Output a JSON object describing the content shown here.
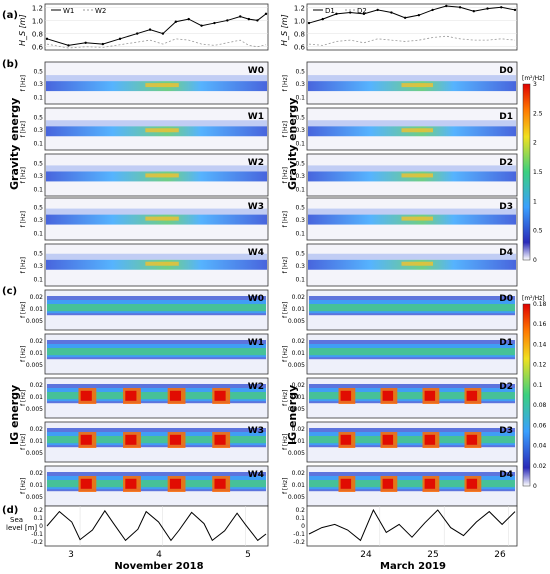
{
  "panel_letters": {
    "a": "(a)",
    "b": "(b)",
    "c": "(c)",
    "d": "(d)"
  },
  "colorbars": {
    "gravity": {
      "unit": "[m²/Hz]",
      "ticks": [
        "3",
        "2.5",
        "2",
        "1.5",
        "1",
        "0.5",
        "0"
      ]
    },
    "ig": {
      "unit": "[m²/Hz]",
      "ticks": [
        "0.18",
        "0.16",
        "0.14",
        "0.12",
        "0.1",
        "0.08",
        "0.06",
        "0.04",
        "0.02",
        "0"
      ]
    }
  },
  "row_labels": {
    "gravity_left": "Gravity energy",
    "gravity_right": "Gravity energy",
    "ig_left": "IG energy",
    "ig_right": "IG energy"
  },
  "spectro_labels": {
    "gravity_left": [
      "W0",
      "W1",
      "W2",
      "W3",
      "W4"
    ],
    "gravity_right": [
      "D0",
      "D1",
      "D2",
      "D3",
      "D4"
    ],
    "ig_left": [
      "W0",
      "W1",
      "W2",
      "W3",
      "W4"
    ],
    "ig_right": [
      "D0",
      "D1",
      "D2",
      "D3",
      "D4"
    ]
  },
  "axis_text": {
    "f_label": "f [Hz]",
    "hs_label": "H_S [m]",
    "sea_label_1": "Sea",
    "sea_label_2": "level [m]",
    "gravity_ticks": [
      "0.5",
      "0.3",
      "0.1"
    ],
    "ig_ticks": [
      "0.02",
      "0.01",
      "0.005"
    ]
  },
  "bottom_axes": {
    "left": {
      "ticks": [
        "3",
        "4",
        "5"
      ],
      "label": "November 2018"
    },
    "right": {
      "ticks": [
        "24",
        "25",
        "26"
      ],
      "label": "March 2019"
    }
  },
  "colors": {
    "line": "#000000",
    "dashed": "#999999",
    "grid": "#cccccc",
    "frame": "#333333"
  },
  "chart_data": [
    {
      "type": "line",
      "panel": "(a) left",
      "ylabel": "H_S [m]",
      "ylim": [
        0.55,
        1.25
      ],
      "yticks": [
        0.6,
        0.8,
        1.0,
        1.2
      ],
      "x": [
        2.65,
        2.9,
        3.1,
        3.3,
        3.5,
        3.7,
        3.85,
        4.0,
        4.15,
        4.3,
        4.45,
        4.6,
        4.75,
        4.9,
        5.0,
        5.1,
        5.2
      ],
      "series": [
        {
          "name": "W1",
          "style": "solid-markers",
          "values": [
            0.72,
            0.62,
            0.66,
            0.64,
            0.72,
            0.8,
            0.86,
            0.8,
            0.98,
            1.02,
            0.92,
            0.96,
            1.0,
            1.06,
            1.02,
            1.0,
            1.1
          ]
        },
        {
          "name": "W2",
          "style": "dashed",
          "values": [
            0.64,
            0.58,
            0.6,
            0.59,
            0.63,
            0.67,
            0.7,
            0.64,
            0.72,
            0.7,
            0.64,
            0.62,
            0.66,
            0.7,
            0.62,
            0.6,
            0.63
          ]
        }
      ]
    },
    {
      "type": "line",
      "panel": "(a) right",
      "ylabel": "H_S [m]",
      "ylim": [
        0.55,
        1.25
      ],
      "yticks": [
        0.6,
        0.8,
        1.0,
        1.2
      ],
      "x": [
        23.1,
        23.3,
        23.5,
        23.7,
        23.9,
        24.1,
        24.3,
        24.5,
        24.7,
        24.9,
        25.1,
        25.3,
        25.5,
        25.7,
        25.9,
        26.1
      ],
      "series": [
        {
          "name": "D1",
          "style": "solid-markers",
          "values": [
            0.96,
            1.02,
            1.1,
            1.12,
            1.1,
            1.16,
            1.12,
            1.04,
            1.08,
            1.16,
            1.22,
            1.2,
            1.14,
            1.18,
            1.2,
            1.16
          ]
        },
        {
          "name": "D2",
          "style": "dashed",
          "values": [
            0.64,
            0.62,
            0.68,
            0.7,
            0.66,
            0.72,
            0.7,
            0.68,
            0.7,
            0.74,
            0.76,
            0.72,
            0.7,
            0.7,
            0.72,
            0.7
          ]
        }
      ]
    },
    {
      "type": "line",
      "panel": "(d) left",
      "ylabel": "Sea level [m]",
      "ylim": [
        -0.25,
        0.25
      ],
      "yticks": [
        0.2,
        0.1,
        0.0,
        -0.1,
        -0.2
      ],
      "xticks": [
        3,
        4,
        5
      ],
      "xlabel": "November 2018",
      "x": [
        2.6,
        2.75,
        2.9,
        3.0,
        3.15,
        3.3,
        3.4,
        3.55,
        3.7,
        3.8,
        3.95,
        4.1,
        4.2,
        4.35,
        4.5,
        4.6,
        4.75,
        4.9,
        5.0,
        5.15,
        5.25
      ],
      "values": [
        0.0,
        0.18,
        0.05,
        -0.17,
        -0.05,
        0.19,
        0.04,
        -0.18,
        -0.04,
        0.18,
        0.05,
        -0.18,
        -0.05,
        0.17,
        0.03,
        -0.18,
        -0.06,
        0.16,
        0.02,
        -0.18,
        -0.1
      ]
    },
    {
      "type": "line",
      "panel": "(d) right",
      "ylim": [
        -0.25,
        0.25
      ],
      "yticks": [
        0.2,
        0.1,
        0.0,
        -0.1,
        -0.2
      ],
      "xticks": [
        24,
        25,
        26
      ],
      "xlabel": "March 2019",
      "x": [
        22.9,
        23.1,
        23.3,
        23.5,
        23.7,
        23.9,
        24.1,
        24.3,
        24.5,
        24.7,
        24.9,
        25.1,
        25.3,
        25.5,
        25.7,
        25.9,
        26.1
      ],
      "values": [
        -0.1,
        -0.02,
        0.02,
        -0.05,
        -0.18,
        0.2,
        -0.08,
        0.02,
        -0.14,
        0.04,
        0.2,
        -0.02,
        -0.12,
        0.05,
        0.18,
        0.02,
        0.18
      ]
    }
  ]
}
